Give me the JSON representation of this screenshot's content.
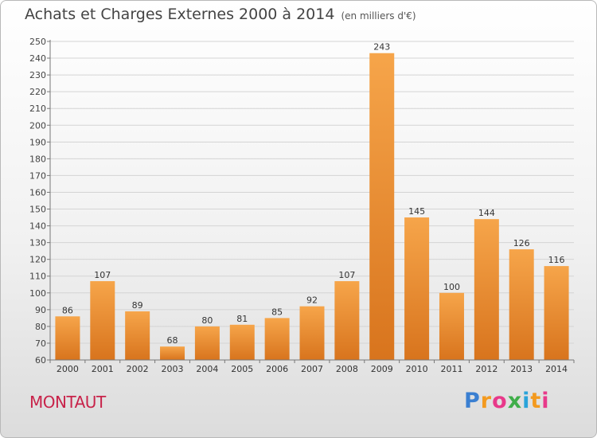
{
  "title": "Achats et Charges Externes 2000 à 2014",
  "unit_note": "(en milliers d'€)",
  "commune": "MONTAUT",
  "logo": {
    "letters": [
      "P",
      "r",
      "o",
      "x",
      "i",
      "t",
      "i"
    ],
    "colors": [
      "#3a7fd1",
      "#f39a1f",
      "#e8398a",
      "#3fae49",
      "#2aa3d9",
      "#f39a1f",
      "#e8398a"
    ]
  },
  "colors": {
    "bar_light": "#f6a54a",
    "bar_dark": "#d8741d",
    "commune": "#c8234a"
  },
  "chart_data": {
    "type": "bar",
    "categories": [
      "2000",
      "2001",
      "2002",
      "2003",
      "2004",
      "2005",
      "2006",
      "2007",
      "2008",
      "2009",
      "2010",
      "2011",
      "2012",
      "2013",
      "2014"
    ],
    "values": [
      86,
      107,
      89,
      68,
      80,
      81,
      85,
      92,
      107,
      243,
      145,
      100,
      144,
      126,
      116
    ],
    "ylim": [
      60,
      250
    ],
    "yticks": [
      60,
      70,
      80,
      90,
      100,
      110,
      120,
      130,
      140,
      150,
      160,
      170,
      180,
      190,
      200,
      210,
      220,
      230,
      240,
      250
    ],
    "grid": true,
    "data_labels": true
  }
}
